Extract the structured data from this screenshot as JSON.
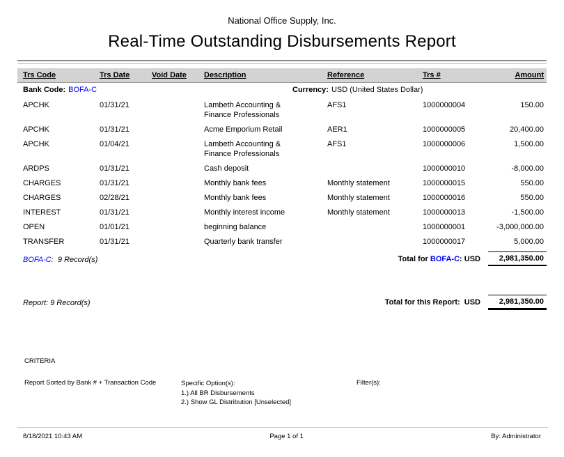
{
  "report": {
    "company": "National Office Supply, Inc.",
    "title": "Real-Time Outstanding Disbursements Report"
  },
  "table": {
    "columns": [
      "Trs Code",
      "Trs Date",
      "Void Date",
      "Description",
      "Reference",
      "Trs #",
      "Amount"
    ],
    "group": {
      "bank_code_label": "Bank Code:",
      "bank_code": "BOFA-C",
      "currency_label": "Currency:",
      "currency": "USD (United States Dollar)"
    },
    "rows": [
      {
        "trs_code": "APCHK",
        "trs_date": "01/31/21",
        "void_date": "",
        "description": "Lambeth Accounting & Finance Professionals",
        "reference": "AFS1",
        "trs_num": "1000000004",
        "amount": "150.00"
      },
      {
        "trs_code": "APCHK",
        "trs_date": "01/31/21",
        "void_date": "",
        "description": "Acme Emporium Retail",
        "reference": "AER1",
        "trs_num": "1000000005",
        "amount": "20,400.00"
      },
      {
        "trs_code": "APCHK",
        "trs_date": "01/04/21",
        "void_date": "",
        "description": "Lambeth Accounting & Finance Professionals",
        "reference": "AFS1",
        "trs_num": "1000000006",
        "amount": "1,500.00"
      },
      {
        "trs_code": "ARDPS",
        "trs_date": "01/31/21",
        "void_date": "",
        "description": "Cash deposit",
        "reference": "",
        "trs_num": "1000000010",
        "amount": "-8,000.00"
      },
      {
        "trs_code": "CHARGES",
        "trs_date": "01/31/21",
        "void_date": "",
        "description": "Monthly bank fees",
        "reference": "Monthly statement",
        "trs_num": "1000000015",
        "amount": "550.00"
      },
      {
        "trs_code": "CHARGES",
        "trs_date": "02/28/21",
        "void_date": "",
        "description": "Monthly bank fees",
        "reference": "Monthly statement",
        "trs_num": "1000000016",
        "amount": "550.00"
      },
      {
        "trs_code": "INTEREST",
        "trs_date": "01/31/21",
        "void_date": "",
        "description": "Monthly interest income",
        "reference": "Monthly statement",
        "trs_num": "1000000013",
        "amount": "-1,500.00"
      },
      {
        "trs_code": "OPEN",
        "trs_date": "01/01/21",
        "void_date": "",
        "description": "beginning balance",
        "reference": "",
        "trs_num": "1000000001",
        "amount": "-3,000,000.00"
      },
      {
        "trs_code": "TRANSFER",
        "trs_date": "01/31/21",
        "void_date": "",
        "description": "Quarterly bank transfer",
        "reference": "",
        "trs_num": "1000000017",
        "amount": "5,000.00"
      }
    ],
    "bank_total": {
      "bank_code": "BOFA-C",
      "records_suffix": ":  9 Record(s)",
      "label_prefix": "Total for ",
      "label_bank": "BOFA-C",
      "label_suffix": ": USD",
      "amount": "2,981,350.00"
    },
    "report_total": {
      "records": "Report: 9 Record(s)",
      "label": "Total for this Report:  USD",
      "amount": "2,981,350.00"
    }
  },
  "criteria": {
    "heading": "CRITERIA",
    "sort": "Report Sorted by Bank # + Transaction Code",
    "options_label": "Specific Option(s):",
    "options": [
      "1.) All BR Disbursements",
      "2.) Show GL Distribution [Unselected]"
    ],
    "filters_label": "Filter(s):"
  },
  "footer": {
    "datetime": "8/18/2021 10:43 AM",
    "page": "Page 1 of 1",
    "by": "By: Administrator"
  },
  "colors": {
    "link_blue": "#0000FF",
    "header_bar_gray": "#D3D3D3",
    "rule_gray": "#8C8C8C",
    "footer_rule_gray": "#C8C8C8"
  }
}
